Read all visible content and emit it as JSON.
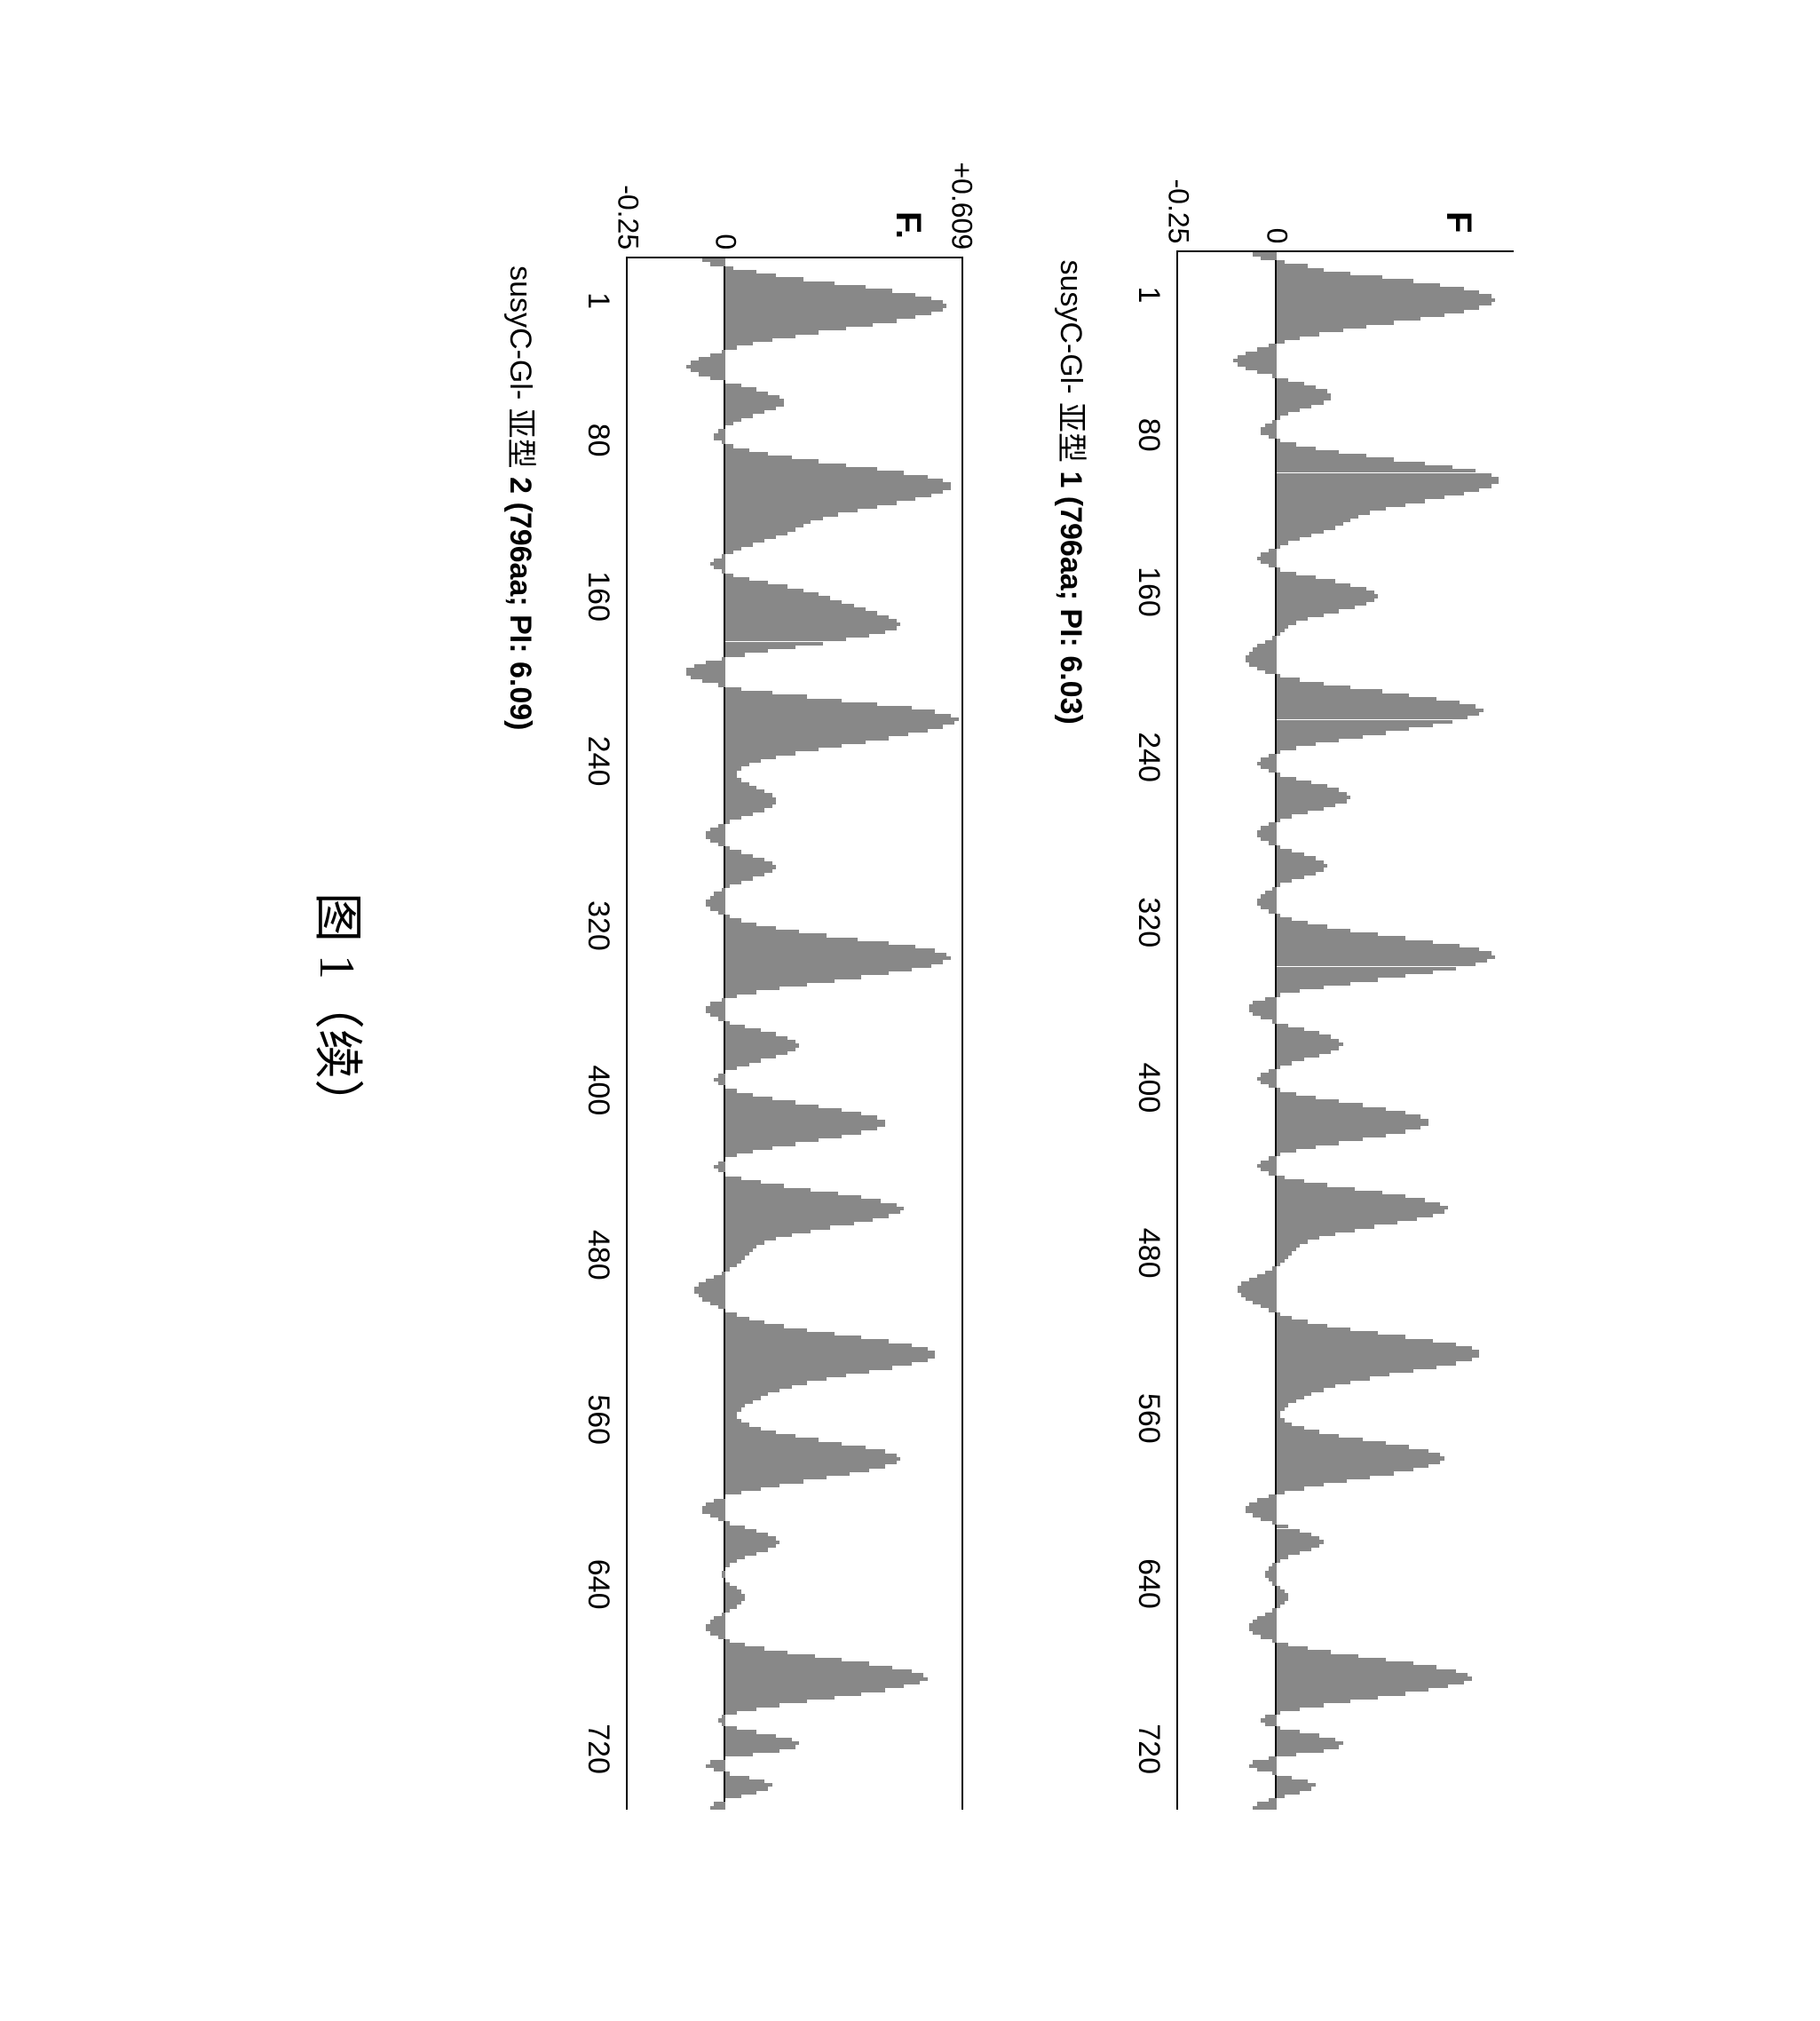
{
  "figure_label": "图 1（续）",
  "charts": [
    {
      "y_label": "F",
      "caption_prefix": "susyC-Gl- 亚型 ",
      "caption_bold": "1 (796aa; PI: 6.03)",
      "x_ticks": [
        "1",
        "80",
        "160",
        "240",
        "320",
        "400",
        "480",
        "560",
        "640",
        "720"
      ],
      "y_ticks": [
        {
          "label": "0",
          "pos_pct": 70.8
        },
        {
          "label": "-0.25",
          "pos_pct": 100
        }
      ],
      "zero_pct": 70.8,
      "ymin": -0.25,
      "ymax": 0.609,
      "show_top_border": false,
      "bar_color": "#888888",
      "bg_color": "#ffffff",
      "line_color": "#000000",
      "font_size_axis": 34,
      "font_size_ylabel": 40,
      "font_size_caption": 34,
      "data": [
        -0.06,
        -0.04,
        0.02,
        0.08,
        0.12,
        0.19,
        0.27,
        0.35,
        0.42,
        0.48,
        0.52,
        0.55,
        0.56,
        0.55,
        0.52,
        0.48,
        0.43,
        0.37,
        0.3,
        0.23,
        0.17,
        0.11,
        0.06,
        0.02,
        -0.02,
        -0.05,
        -0.08,
        -0.1,
        -0.11,
        -0.1,
        -0.08,
        -0.05,
        -0.01,
        0.03,
        0.07,
        0.1,
        0.13,
        0.14,
        0.14,
        0.12,
        0.09,
        0.06,
        0.03,
        0.01,
        -0.01,
        -0.03,
        -0.04,
        -0.04,
        -0.02,
        0.01,
        0.05,
        0.1,
        0.16,
        0.23,
        0.3,
        0.38,
        0.45,
        0.51,
        0.55,
        0.57,
        0.57,
        0.55,
        0.52,
        0.48,
        0.43,
        0.38,
        0.33,
        0.28,
        0.24,
        0.21,
        0.19,
        0.17,
        0.15,
        0.12,
        0.09,
        0.06,
        0.03,
        0.01,
        -0.02,
        -0.04,
        -0.05,
        -0.04,
        -0.02,
        0.01,
        0.05,
        0.1,
        0.15,
        0.19,
        0.23,
        0.25,
        0.26,
        0.25,
        0.23,
        0.2,
        0.16,
        0.12,
        0.08,
        0.05,
        0.03,
        0.02,
        0.01,
        -0.01,
        -0.03,
        -0.05,
        -0.06,
        -0.07,
        -0.08,
        -0.08,
        -0.07,
        -0.05,
        -0.03,
        0.01,
        0.06,
        0.12,
        0.19,
        0.27,
        0.34,
        0.41,
        0.47,
        0.51,
        0.53,
        0.52,
        0.49,
        0.45,
        0.4,
        0.34,
        0.28,
        0.22,
        0.16,
        0.1,
        0.05,
        0.01,
        -0.02,
        -0.04,
        -0.05,
        -0.04,
        -0.02,
        0.01,
        0.05,
        0.09,
        0.13,
        0.16,
        0.18,
        0.19,
        0.18,
        0.15,
        0.12,
        0.08,
        0.04,
        0.01,
        -0.02,
        -0.04,
        -0.05,
        -0.05,
        -0.04,
        -0.02,
        0.01,
        0.04,
        0.07,
        0.1,
        0.12,
        0.13,
        0.12,
        0.1,
        0.07,
        0.04,
        0.01,
        -0.01,
        -0.03,
        -0.04,
        -0.05,
        -0.05,
        -0.04,
        -0.02,
        0.01,
        0.04,
        0.08,
        0.13,
        0.19,
        0.26,
        0.33,
        0.4,
        0.47,
        0.52,
        0.55,
        0.56,
        0.54,
        0.51,
        0.46,
        0.4,
        0.33,
        0.26,
        0.19,
        0.12,
        0.06,
        0.01,
        -0.03,
        -0.06,
        -0.07,
        -0.07,
        -0.06,
        -0.04,
        -0.01,
        0.03,
        0.07,
        0.11,
        0.14,
        0.16,
        0.17,
        0.16,
        0.14,
        0.11,
        0.07,
        0.04,
        0.01,
        -0.02,
        -0.04,
        -0.05,
        -0.04,
        -0.02,
        0.01,
        0.05,
        0.1,
        0.16,
        0.22,
        0.28,
        0.33,
        0.37,
        0.39,
        0.39,
        0.37,
        0.33,
        0.28,
        0.22,
        0.16,
        0.1,
        0.05,
        0.01,
        -0.02,
        -0.04,
        -0.05,
        -0.04,
        -0.02,
        0.02,
        0.07,
        0.13,
        0.2,
        0.27,
        0.33,
        0.38,
        0.42,
        0.44,
        0.43,
        0.4,
        0.36,
        0.31,
        0.25,
        0.2,
        0.15,
        0.11,
        0.08,
        0.06,
        0.05,
        0.04,
        0.03,
        0.02,
        0.01,
        -0.01,
        -0.03,
        -0.05,
        -0.07,
        -0.09,
        -0.1,
        -0.1,
        -0.09,
        -0.08,
        -0.06,
        -0.04,
        -0.02,
        0.01,
        0.04,
        0.08,
        0.13,
        0.19,
        0.26,
        0.33,
        0.4,
        0.46,
        0.5,
        0.52,
        0.52,
        0.5,
        0.46,
        0.41,
        0.35,
        0.29,
        0.24,
        0.19,
        0.15,
        0.12,
        0.09,
        0.07,
        0.05,
        0.03,
        0.02,
        0.01,
        0.01,
        0.02,
        0.04,
        0.07,
        0.11,
        0.16,
        0.22,
        0.28,
        0.34,
        0.39,
        0.42,
        0.43,
        0.42,
        0.39,
        0.35,
        0.3,
        0.24,
        0.18,
        0.12,
        0.07,
        0.02,
        -0.02,
        -0.05,
        -0.07,
        -0.08,
        -0.08,
        -0.06,
        -0.04,
        -0.01,
        0.03,
        0.06,
        0.09,
        0.11,
        0.12,
        0.11,
        0.09,
        0.06,
        0.03,
        0.01,
        -0.01,
        -0.02,
        -0.03,
        -0.03,
        -0.02,
        -0.01,
        0.01,
        0.02,
        0.03,
        0.03,
        0.02,
        0.01,
        -0.01,
        -0.03,
        -0.05,
        -0.06,
        -0.07,
        -0.07,
        -0.06,
        -0.04,
        -0.01,
        0.03,
        0.08,
        0.14,
        0.21,
        0.28,
        0.35,
        0.41,
        0.46,
        0.49,
        0.5,
        0.48,
        0.44,
        0.39,
        0.33,
        0.26,
        0.19,
        0.12,
        0.06,
        0.01,
        -0.03,
        -0.04,
        -0.03,
        0.01,
        0.06,
        0.11,
        0.15,
        0.17,
        0.16,
        0.12,
        0.05,
        -0.02,
        -0.06,
        -0.07,
        -0.05,
        -0.01,
        0.04,
        0.08,
        0.1,
        0.09,
        0.06,
        0.02,
        -0.02,
        -0.05,
        -0.06
      ]
    },
    {
      "y_label": "F.",
      "caption_prefix": "susyC-Gl- 亚型 ",
      "caption_bold": "2 (796aa; PI: 6.09)",
      "x_ticks": [
        "1",
        "80",
        "160",
        "240",
        "320",
        "400",
        "480",
        "560",
        "640",
        "720"
      ],
      "y_ticks": [
        {
          "label": "+0.609",
          "pos_pct": 0
        },
        {
          "label": "0",
          "pos_pct": 70.8
        },
        {
          "label": "-0.25",
          "pos_pct": 100
        }
      ],
      "zero_pct": 70.8,
      "ymin": -0.25,
      "ymax": 0.609,
      "show_top_border": true,
      "bar_color": "#888888",
      "bg_color": "#ffffff",
      "line_color": "#000000",
      "font_size_axis": 34,
      "font_size_ylabel": 40,
      "font_size_caption": 34,
      "data": [
        -0.06,
        -0.04,
        0.02,
        0.08,
        0.13,
        0.2,
        0.28,
        0.36,
        0.43,
        0.49,
        0.53,
        0.56,
        0.57,
        0.56,
        0.53,
        0.49,
        0.44,
        0.38,
        0.31,
        0.24,
        0.18,
        0.12,
        0.07,
        0.03,
        -0.01,
        -0.04,
        -0.07,
        -0.09,
        -0.1,
        -0.09,
        -0.07,
        -0.04,
        0.0,
        0.04,
        0.08,
        0.11,
        0.14,
        0.15,
        0.15,
        0.13,
        0.1,
        0.07,
        0.04,
        0.02,
        0.0,
        -0.02,
        -0.03,
        -0.03,
        -0.01,
        0.02,
        0.06,
        0.11,
        0.17,
        0.24,
        0.31,
        0.39,
        0.46,
        0.52,
        0.56,
        0.58,
        0.58,
        0.56,
        0.53,
        0.49,
        0.44,
        0.39,
        0.34,
        0.29,
        0.25,
        0.22,
        0.2,
        0.18,
        0.16,
        0.13,
        0.1,
        0.07,
        0.04,
        0.02,
        -0.01,
        -0.03,
        -0.04,
        -0.03,
        -0.01,
        0.02,
        0.06,
        0.11,
        0.16,
        0.2,
        0.24,
        0.27,
        0.3,
        0.33,
        0.36,
        0.39,
        0.42,
        0.44,
        0.45,
        0.44,
        0.41,
        0.37,
        0.31,
        0.25,
        0.18,
        0.11,
        0.05,
        -0.01,
        -0.05,
        -0.08,
        -0.1,
        -0.1,
        -0.09,
        -0.06,
        -0.02,
        0.04,
        0.12,
        0.21,
        0.3,
        0.39,
        0.48,
        0.54,
        0.58,
        0.6,
        0.59,
        0.56,
        0.52,
        0.47,
        0.42,
        0.36,
        0.3,
        0.24,
        0.18,
        0.13,
        0.09,
        0.06,
        0.04,
        0.03,
        0.03,
        0.04,
        0.06,
        0.08,
        0.1,
        0.12,
        0.13,
        0.13,
        0.12,
        0.1,
        0.07,
        0.04,
        0.01,
        -0.02,
        -0.04,
        -0.05,
        -0.05,
        -0.04,
        -0.02,
        0.01,
        0.04,
        0.07,
        0.1,
        0.12,
        0.13,
        0.12,
        0.1,
        0.07,
        0.04,
        0.01,
        -0.01,
        -0.03,
        -0.04,
        -0.05,
        -0.05,
        -0.04,
        -0.02,
        0.01,
        0.04,
        0.08,
        0.13,
        0.19,
        0.26,
        0.34,
        0.42,
        0.49,
        0.54,
        0.57,
        0.58,
        0.56,
        0.53,
        0.48,
        0.42,
        0.35,
        0.28,
        0.21,
        0.14,
        0.08,
        0.03,
        -0.01,
        -0.04,
        -0.05,
        -0.05,
        -0.04,
        -0.02,
        0.01,
        0.05,
        0.09,
        0.13,
        0.16,
        0.18,
        0.19,
        0.18,
        0.16,
        0.13,
        0.09,
        0.06,
        0.03,
        0.0,
        -0.02,
        -0.03,
        -0.02,
        0.0,
        0.03,
        0.07,
        0.12,
        0.18,
        0.24,
        0.3,
        0.35,
        0.39,
        0.41,
        0.41,
        0.39,
        0.35,
        0.3,
        0.24,
        0.18,
        0.12,
        0.07,
        0.03,
        0.0,
        -0.02,
        -0.03,
        -0.02,
        0.0,
        0.04,
        0.09,
        0.15,
        0.22,
        0.29,
        0.35,
        0.4,
        0.44,
        0.46,
        0.45,
        0.42,
        0.38,
        0.33,
        0.27,
        0.22,
        0.17,
        0.13,
        0.1,
        0.08,
        0.07,
        0.06,
        0.05,
        0.04,
        0.03,
        0.01,
        -0.01,
        -0.03,
        -0.05,
        -0.07,
        -0.08,
        -0.08,
        -0.07,
        -0.06,
        -0.04,
        -0.02,
        0.0,
        0.03,
        0.06,
        0.1,
        0.15,
        0.21,
        0.28,
        0.35,
        0.42,
        0.48,
        0.52,
        0.54,
        0.54,
        0.52,
        0.48,
        0.43,
        0.37,
        0.31,
        0.26,
        0.21,
        0.17,
        0.14,
        0.11,
        0.09,
        0.07,
        0.05,
        0.04,
        0.03,
        0.03,
        0.04,
        0.06,
        0.09,
        0.13,
        0.18,
        0.24,
        0.3,
        0.36,
        0.41,
        0.44,
        0.45,
        0.44,
        0.41,
        0.37,
        0.32,
        0.26,
        0.2,
        0.14,
        0.09,
        0.04,
        0.0,
        -0.03,
        -0.05,
        -0.06,
        -0.06,
        -0.04,
        -0.02,
        0.01,
        0.05,
        0.08,
        0.11,
        0.13,
        0.14,
        0.13,
        0.11,
        0.08,
        0.05,
        0.03,
        0.01,
        0.0,
        -0.01,
        -0.01,
        0.0,
        0.01,
        0.03,
        0.04,
        0.05,
        0.05,
        0.04,
        0.03,
        0.01,
        -0.01,
        -0.03,
        -0.04,
        -0.05,
        -0.05,
        -0.04,
        -0.02,
        0.01,
        0.05,
        0.1,
        0.16,
        0.23,
        0.3,
        0.37,
        0.43,
        0.48,
        0.51,
        0.52,
        0.5,
        0.46,
        0.41,
        0.35,
        0.28,
        0.21,
        0.14,
        0.08,
        0.03,
        -0.01,
        -0.02,
        -0.01,
        0.03,
        0.08,
        0.13,
        0.17,
        0.19,
        0.18,
        0.14,
        0.07,
        0.0,
        -0.04,
        -0.05,
        -0.03,
        0.01,
        0.06,
        0.1,
        0.12,
        0.11,
        0.08,
        0.04,
        0.0,
        -0.03,
        -0.04
      ]
    }
  ]
}
